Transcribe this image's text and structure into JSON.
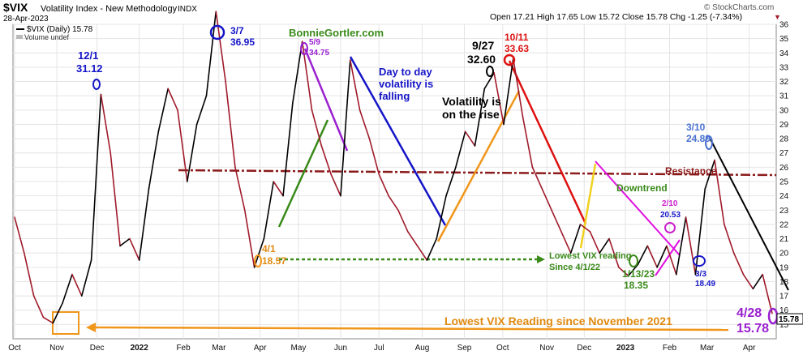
{
  "header": {
    "symbol": "$VIX",
    "name": "Volatility Index - New Methodology",
    "exchange": "INDX",
    "date": "28-Apr-2023",
    "ohlc_text": "Open 17.21  High 17.65  Low 15.72  Close 15.78  Chg -1.25 (-7.34%)",
    "change_marker": "▼",
    "watermark": "© StockCharts.com",
    "legend_series": "$VIX (Daily) 15.78",
    "legend_volume": "Volume undef"
  },
  "colors": {
    "price_up": "#000000",
    "price_down": "#a01a2a",
    "resistance": "#8b1a1a",
    "accent_blue": "#1515c8"
  },
  "chart_data": {
    "type": "line",
    "ylim": [
      14,
      36
    ],
    "y_ticks": [
      15,
      16,
      17,
      18,
      19,
      20,
      21,
      22,
      23,
      24,
      25,
      26,
      27,
      28,
      29,
      30,
      31,
      32,
      33,
      34,
      35,
      36
    ],
    "x_range": [
      0,
      79
    ],
    "x_ticks": [
      {
        "label": "Oct",
        "x": 0
      },
      {
        "label": "Nov",
        "x": 4.4
      },
      {
        "label": "Dec",
        "x": 8.6
      },
      {
        "label": "2022",
        "x": 13
      },
      {
        "label": "Feb",
        "x": 17.6
      },
      {
        "label": "Mar",
        "x": 21.3
      },
      {
        "label": "Apr",
        "x": 25.6
      },
      {
        "label": "May",
        "x": 29.6
      },
      {
        "label": "Jun",
        "x": 34
      },
      {
        "label": "Jul",
        "x": 38
      },
      {
        "label": "Aug",
        "x": 42.5
      },
      {
        "label": "Sep",
        "x": 46.9
      },
      {
        "label": "Oct",
        "x": 50.9
      },
      {
        "label": "Nov",
        "x": 55.5
      },
      {
        "label": "Dec",
        "x": 59.4
      },
      {
        "label": "2023",
        "x": 63.7
      },
      {
        "label": "Feb",
        "x": 68.3
      },
      {
        "label": "Mar",
        "x": 72.2
      },
      {
        "label": "Apr",
        "x": 76.6
      }
    ],
    "last_value": "15.78",
    "series": [
      {
        "x": [
          0,
          1,
          2,
          3,
          4,
          5,
          6,
          7,
          8,
          9,
          10,
          11,
          12,
          13,
          14,
          15,
          16,
          17,
          18,
          19,
          20,
          21,
          22,
          23,
          24,
          25,
          26,
          27,
          28,
          29,
          30,
          31,
          32,
          33,
          34,
          35,
          36,
          37,
          38,
          39,
          40,
          41,
          42,
          43,
          44,
          45,
          46,
          47,
          48,
          49,
          50,
          51,
          52,
          53,
          54,
          55,
          56,
          57,
          58,
          59,
          60,
          61,
          62,
          63,
          64,
          65,
          66,
          67,
          68,
          69,
          70,
          71,
          72,
          73,
          74,
          75,
          76,
          77,
          78,
          79
        ],
        "values": [
          22.5,
          20.0,
          17.0,
          15.5,
          15.1,
          16.5,
          18.5,
          17.0,
          19.5,
          31.1,
          27.0,
          20.5,
          21.0,
          19.5,
          24.5,
          28.5,
          31.5,
          30.0,
          25.0,
          29.0,
          31.0,
          36.9,
          32.0,
          26.0,
          23.0,
          19.0,
          21.0,
          25.0,
          24.0,
          30.5,
          34.8,
          30.0,
          27.5,
          25.5,
          24.0,
          33.5,
          30.0,
          28.0,
          25.5,
          24.0,
          23.0,
          21.5,
          20.5,
          19.5,
          21.0,
          24.0,
          26.0,
          28.5,
          27.5,
          31.5,
          32.6,
          29.0,
          33.6,
          29.5,
          26.0,
          24.5,
          23.0,
          21.5,
          20.0,
          22.0,
          21.5,
          20.0,
          21.0,
          19.0,
          18.4,
          19.2,
          20.5,
          19.0,
          20.5,
          18.5,
          22.5,
          18.5,
          24.5,
          26.5,
          22.0,
          20.0,
          18.5,
          17.5,
          18.5,
          15.78
        ]
      }
    ]
  },
  "annotations": [
    {
      "text": "12/1",
      "color": "#1515c8"
    },
    {
      "text": "31.12",
      "color": "#1515c8"
    },
    {
      "text": "3/7",
      "color": "#1515c8"
    },
    {
      "text": "36.95",
      "color": "#1515c8"
    },
    {
      "text": "BonnieGortler.com",
      "color": "#3a8a1a"
    },
    {
      "text": "5/9",
      "color": "#9a20d0"
    },
    {
      "text": "34.75",
      "color": "#9a20d0"
    },
    {
      "text": "Day to day",
      "color": "#1515c8"
    },
    {
      "text": "volatility is",
      "color": "#1515c8"
    },
    {
      "text": "falling",
      "color": "#1515c8"
    },
    {
      "text": "9/27",
      "color": "#000000"
    },
    {
      "text": "32.60",
      "color": "#000000"
    },
    {
      "text": "10/11",
      "color": "#dd1111"
    },
    {
      "text": "33.63",
      "color": "#dd1111"
    },
    {
      "text": "Volatility is",
      "color": "#000000"
    },
    {
      "text": "on the rise",
      "color": "#000000"
    },
    {
      "text": "3/10",
      "color": "#4a72d0"
    },
    {
      "text": "24.89",
      "color": "#4a72d0"
    },
    {
      "text": "Resistance",
      "color": "#8b1a1a"
    },
    {
      "text": "Downtrend",
      "color": "#3a8a1a"
    },
    {
      "text": "2/10",
      "color": "#cc22cc"
    },
    {
      "text": "20.53",
      "color": "#1515c8"
    },
    {
      "text": "4/1",
      "color": "#e08a10"
    },
    {
      "text": "18.57",
      "color": "#e08a10"
    },
    {
      "text": "Lowest VIX reading",
      "color": "#3a8a1a"
    },
    {
      "text": "Since 4/1/22",
      "color": "#3a8a1a"
    },
    {
      "text": "1/13/23",
      "color": "#3a8a1a"
    },
    {
      "text": "18.35",
      "color": "#3a8a1a"
    },
    {
      "text": "3/3",
      "color": "#1515c8"
    },
    {
      "text": "18.49",
      "color": "#1515c8"
    },
    {
      "text": "4/28",
      "color": "#9a20d0"
    },
    {
      "text": "15.78",
      "color": "#9a20d0"
    },
    {
      "text": "Lowest VIX Reading since November 2021",
      "color": "#e08a10"
    }
  ]
}
